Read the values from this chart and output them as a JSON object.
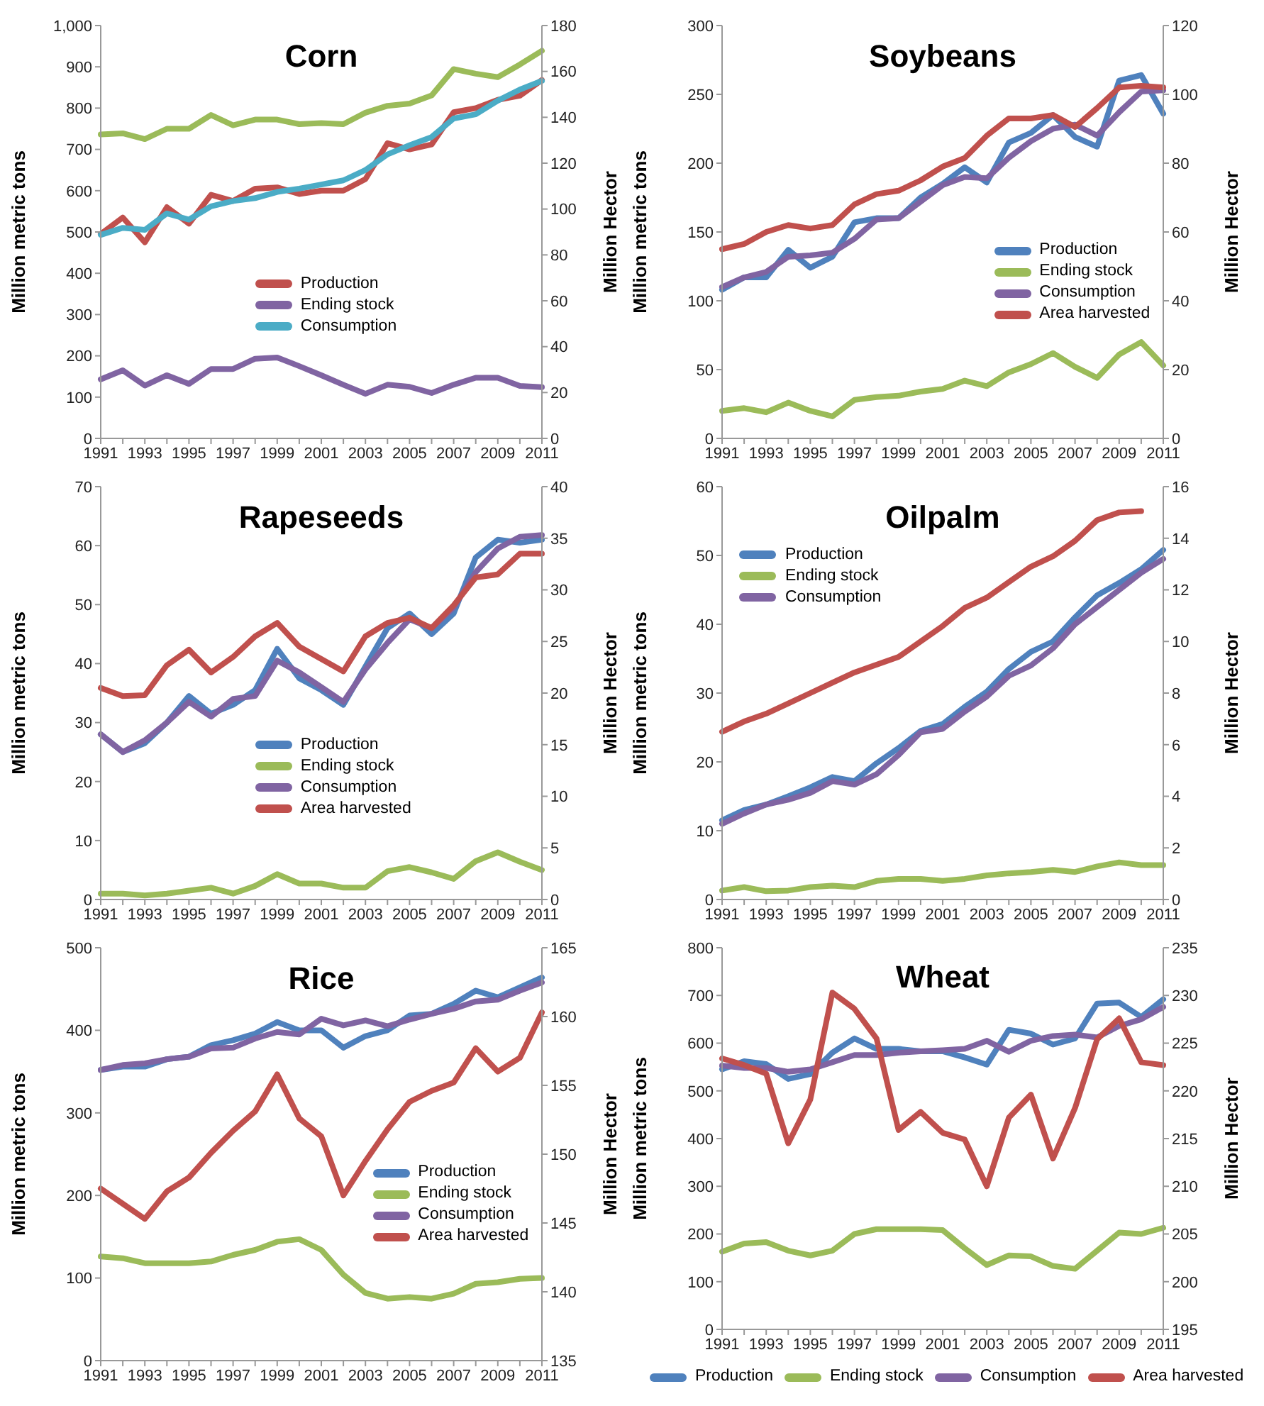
{
  "chart_data": [
    {
      "type": "line",
      "title": "Corn",
      "ylabel": "Million metric tons",
      "y2label": "Million Hector",
      "categories": [
        "1991",
        null,
        "1993",
        null,
        "1995",
        null,
        "1997",
        null,
        "1999",
        null,
        "2001",
        null,
        "2003",
        null,
        "2005",
        null,
        "2007",
        null,
        "2009",
        null,
        "2011"
      ],
      "ylim": [
        0,
        1000
      ],
      "yticks": [
        0,
        100,
        200,
        300,
        400,
        500,
        600,
        700,
        800,
        900,
        {
          "value": 1000,
          "label": "1,000"
        }
      ],
      "y2lim": [
        0,
        180
      ],
      "y2ticks": [
        0,
        20,
        40,
        60,
        80,
        100,
        120,
        140,
        160,
        180
      ],
      "legend": "center",
      "marker": "none",
      "line_style": "solid",
      "series": [
        {
          "name": "Production",
          "color": "#c0504d",
          "values": [
            495,
            535,
            475,
            560,
            520,
            590,
            575,
            605,
            608,
            592,
            600,
            600,
            628,
            715,
            700,
            712,
            790,
            800,
            820,
            830,
            868
          ]
        },
        {
          "name": "Ending stock",
          "color": "#8064a2",
          "values": [
            143,
            165,
            128,
            153,
            132,
            168,
            168,
            193,
            196,
            175,
            153,
            130,
            108,
            130,
            125,
            110,
            130,
            147,
            147,
            127,
            124
          ]
        },
        {
          "name": "Consumption",
          "color": "#4bacc6",
          "values": [
            493,
            510,
            505,
            545,
            530,
            562,
            575,
            582,
            597,
            605,
            615,
            625,
            650,
            688,
            710,
            730,
            775,
            785,
            818,
            845,
            866
          ]
        },
        {
          "color": "#9bbb59",
          "axis": "y2",
          "values": [
            132.5,
            133,
            130.5,
            135,
            135,
            141,
            136.5,
            139,
            139,
            137,
            137.5,
            137,
            142,
            145,
            146,
            149.5,
            161,
            159,
            157.5,
            163,
            169
          ]
        }
      ]
    },
    {
      "type": "line",
      "title": "Soybeans",
      "ylabel": "Million metric tons",
      "y2label": "Million Hector",
      "categories": [
        "1991",
        null,
        "1993",
        null,
        "1995",
        null,
        "1997",
        null,
        "1999",
        null,
        "2001",
        null,
        "2003",
        null,
        "2005",
        null,
        "2007",
        null,
        "2009",
        null,
        "2011"
      ],
      "ylim": [
        0,
        300
      ],
      "yticks": [
        0,
        50,
        100,
        150,
        200,
        250,
        300
      ],
      "y2lim": [
        0,
        120
      ],
      "y2ticks": [
        0,
        20,
        40,
        60,
        80,
        100,
        120
      ],
      "legend": "right",
      "marker": "none",
      "line_style": "solid",
      "series": [
        {
          "name": "Production",
          "color": "#4f81bd",
          "values": [
            108,
            117,
            117,
            137,
            124,
            132,
            157,
            160,
            160,
            175,
            185,
            197,
            186,
            215,
            222,
            235,
            219,
            212,
            260,
            264,
            236
          ]
        },
        {
          "name": "Ending stock",
          "color": "#9bbb59",
          "values": [
            20,
            22,
            19,
            26,
            20,
            16,
            28,
            30,
            31,
            34,
            36,
            42,
            38,
            48,
            54,
            62,
            52,
            44,
            61,
            70,
            53
          ]
        },
        {
          "name": "Consumption",
          "color": "#8064a2",
          "values": [
            110,
            117,
            121,
            132,
            133,
            135,
            145,
            159,
            160,
            172,
            184,
            190,
            189,
            204,
            216,
            225,
            228,
            220,
            237,
            252,
            253
          ]
        },
        {
          "name": "Area harvested",
          "color": "#c0504d",
          "axis": "y2",
          "values": [
            55,
            56.5,
            60,
            62,
            61,
            62,
            68,
            71,
            72,
            75,
            79,
            81.5,
            88,
            93,
            93,
            94,
            90.5,
            96,
            102,
            102.5,
            102
          ]
        }
      ]
    },
    {
      "type": "line",
      "title": "Rapeseeds",
      "ylabel": "Million metric tons",
      "y2label": "Million Hector",
      "categories": [
        "1991",
        null,
        "1993",
        null,
        "1995",
        null,
        "1997",
        null,
        "1999",
        null,
        "2001",
        null,
        "2003",
        null,
        "2005",
        null,
        "2007",
        null,
        "2009",
        null,
        "2011"
      ],
      "ylim": [
        0,
        70
      ],
      "yticks": [
        0,
        10,
        20,
        30,
        40,
        50,
        60,
        70
      ],
      "y2lim": [
        0,
        40
      ],
      "y2ticks": [
        0,
        5,
        10,
        15,
        20,
        25,
        30,
        35,
        40
      ],
      "legend": "center",
      "marker": "none",
      "line_style": "solid",
      "series": [
        {
          "name": "Production",
          "color": "#4f81bd",
          "values": [
            28,
            25,
            26.5,
            30,
            34.5,
            31.5,
            33,
            35.5,
            42.5,
            37.5,
            35.5,
            33,
            39.5,
            46,
            48.5,
            45,
            48.5,
            58,
            61,
            60.5,
            61
          ]
        },
        {
          "name": "Ending stock",
          "color": "#9bbb59",
          "values": [
            1,
            1,
            0.7,
            1,
            1.5,
            2,
            1,
            2.3,
            4.3,
            2.7,
            2.7,
            2,
            2,
            4.8,
            5.5,
            4.6,
            3.5,
            6.5,
            8,
            6.4,
            5
          ]
        },
        {
          "name": "Consumption",
          "color": "#8064a2",
          "values": [
            28,
            25,
            27,
            30,
            33.5,
            31,
            34,
            34.5,
            40.5,
            38.5,
            36,
            33.5,
            39,
            43.5,
            47.5,
            46,
            49.5,
            55.5,
            59.5,
            61.5,
            61.8
          ]
        },
        {
          "name": "Area harvested",
          "color": "#c0504d",
          "axis": "y2",
          "values": [
            20.5,
            19.7,
            19.8,
            22.7,
            24.2,
            22,
            23.5,
            25.5,
            26.8,
            24.5,
            23.3,
            22.1,
            25.5,
            26.8,
            27.3,
            26.3,
            28.5,
            31.2,
            31.5,
            33.5,
            33.5
          ]
        }
      ]
    },
    {
      "type": "line",
      "title": "Oilpalm",
      "ylabel": "Million metric tons",
      "y2label": "Million Hector",
      "categories": [
        "1991",
        null,
        "1993",
        null,
        "1995",
        null,
        "1997",
        null,
        "1999",
        null,
        "2001",
        null,
        "2003",
        null,
        "2005",
        null,
        "2007",
        null,
        "2009",
        null,
        "2011"
      ],
      "ylim": [
        0,
        60
      ],
      "yticks": [
        0,
        10,
        20,
        30,
        40,
        50,
        60
      ],
      "y2lim": [
        0,
        16
      ],
      "y2ticks": [
        0,
        2,
        4,
        6,
        8,
        10,
        12,
        14,
        16
      ],
      "legend": "top left",
      "marker": "none",
      "line_style": "solid",
      "series": [
        {
          "name": "Production",
          "color": "#4f81bd",
          "values": [
            11.5,
            13,
            13.8,
            15,
            16.3,
            17.8,
            17.2,
            19.8,
            22,
            24.5,
            25.5,
            28,
            30.2,
            33.5,
            36,
            37.5,
            41,
            44.2,
            46,
            48,
            50.8
          ]
        },
        {
          "name": "Ending stock",
          "color": "#9bbb59",
          "values": [
            1.3,
            1.8,
            1.2,
            1.3,
            1.8,
            2,
            1.8,
            2.7,
            3,
            3,
            2.7,
            3,
            3.5,
            3.8,
            4,
            4.3,
            4,
            4.8,
            5.4,
            5,
            5
          ]
        },
        {
          "name": "Consumption",
          "color": "#8064a2",
          "values": [
            11,
            12.5,
            13.8,
            14.5,
            15.5,
            17.2,
            16.7,
            18.2,
            21,
            24.3,
            24.8,
            27.3,
            29.5,
            32.5,
            34,
            36.5,
            40,
            42.5,
            45,
            47.5,
            49.5
          ]
        },
        {
          "color": "#c0504d",
          "axis": "y2",
          "values": [
            6.5,
            6.9,
            7.2,
            7.6,
            8,
            8.4,
            8.8,
            9.1,
            9.4,
            10,
            10.6,
            11.3,
            11.7,
            12.3,
            12.9,
            13.3,
            13.9,
            14.7,
            15,
            15.05,
            null
          ]
        }
      ]
    },
    {
      "type": "line",
      "title": "Rice",
      "ylabel": "Million metric tons",
      "y2label": "Million Hector",
      "categories": [
        "1991",
        null,
        "1993",
        null,
        "1995",
        null,
        "1997",
        null,
        "1999",
        null,
        "2001",
        null,
        "2003",
        null,
        "2005",
        null,
        "2007",
        null,
        "2009",
        null,
        "2011"
      ],
      "ylim": [
        0,
        500
      ],
      "yticks": [
        0,
        100,
        200,
        300,
        400,
        500
      ],
      "y2lim": [
        135,
        165
      ],
      "y2ticks": [
        135,
        140,
        145,
        150,
        155,
        160,
        165
      ],
      "legend": "right",
      "marker": "none",
      "line_style": "solid",
      "series": [
        {
          "name": "Production",
          "color": "#4f81bd",
          "values": [
            352,
            356,
            356,
            365,
            368,
            382,
            388,
            396,
            410,
            400,
            400,
            379,
            393,
            400,
            418,
            420,
            432,
            448,
            440,
            452,
            464
          ]
        },
        {
          "name": "Ending stock",
          "color": "#9bbb59",
          "values": [
            126,
            124,
            118,
            118,
            118,
            120,
            128,
            134,
            144,
            147,
            134,
            104,
            82,
            75,
            77,
            75,
            81,
            93,
            95,
            99,
            100
          ]
        },
        {
          "name": "Consumption",
          "color": "#8064a2",
          "values": [
            352,
            358,
            360,
            365,
            368,
            378,
            379,
            390,
            398,
            395,
            414,
            406,
            412,
            405,
            413,
            420,
            426,
            435,
            437,
            448,
            458
          ]
        },
        {
          "name": "Area harvested",
          "color": "#c0504d",
          "axis": "y2",
          "values": [
            147.5,
            146.4,
            145.3,
            147.3,
            148.3,
            150.1,
            151.7,
            153.1,
            155.8,
            152.6,
            151.3,
            147,
            149.5,
            151.8,
            153.8,
            154.6,
            155.2,
            157.7,
            156,
            157,
            160.3
          ]
        }
      ]
    },
    {
      "type": "line",
      "title": "Wheat",
      "ylabel": "Million metric tons",
      "y2label": "Million Hector",
      "categories": [
        "1991",
        null,
        "1993",
        null,
        "1995",
        null,
        "1997",
        null,
        "1999",
        null,
        "2001",
        null,
        "2003",
        null,
        "2005",
        null,
        "2007",
        null,
        "2009",
        null,
        "2011"
      ],
      "ylim": [
        0,
        800
      ],
      "yticks": [
        0,
        100,
        200,
        300,
        400,
        500,
        600,
        700,
        800
      ],
      "y2lim": [
        195,
        235
      ],
      "y2ticks": [
        195,
        200,
        205,
        210,
        215,
        220,
        225,
        230,
        235
      ],
      "legend": "bottom",
      "marker": "none",
      "line_style": "solid",
      "series": [
        {
          "name": "Production",
          "color": "#4f81bd",
          "values": [
            545,
            562,
            556,
            525,
            535,
            580,
            610,
            588,
            588,
            583,
            583,
            570,
            555,
            628,
            620,
            597,
            610,
            683,
            685,
            655,
            692
          ]
        },
        {
          "name": "Ending stock",
          "color": "#9bbb59",
          "values": [
            163,
            180,
            183,
            165,
            155,
            165,
            200,
            210,
            210,
            210,
            208,
            170,
            135,
            155,
            153,
            133,
            127,
            165,
            203,
            200,
            213
          ]
        },
        {
          "name": "Consumption",
          "color": "#8064a2",
          "values": [
            553,
            548,
            548,
            540,
            545,
            560,
            575,
            575,
            580,
            583,
            585,
            588,
            605,
            582,
            605,
            615,
            618,
            612,
            636,
            650,
            676
          ]
        },
        {
          "name": "Area harvested",
          "color": "#c0504d",
          "axis": "y2",
          "values": [
            223.4,
            222.7,
            221.8,
            214.5,
            219.1,
            230.3,
            228.6,
            225.5,
            215.9,
            217.8,
            215.6,
            214.9,
            210,
            217.2,
            219.6,
            212.9,
            218.2,
            225.4,
            227.6,
            223,
            222.7
          ]
        }
      ]
    }
  ]
}
